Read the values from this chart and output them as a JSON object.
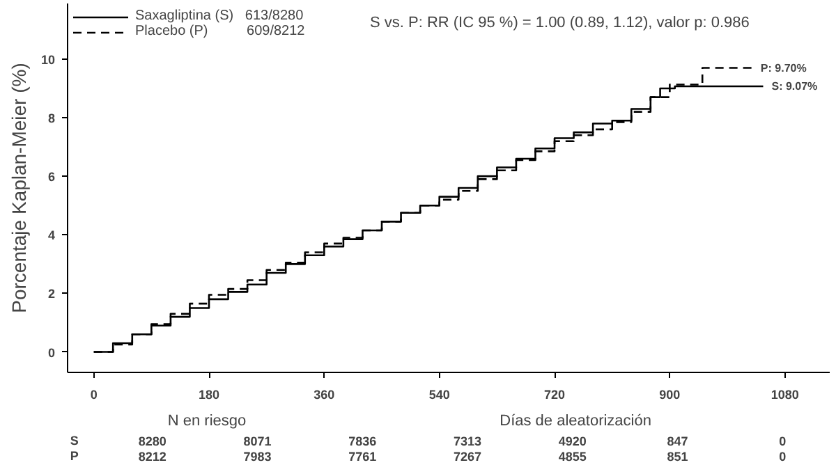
{
  "chart_data": {
    "type": "step",
    "ylabel": "Porcentaje Kaplan-Meier (%)",
    "xlabel": "Días de aleatorización",
    "xlim": [
      -41,
      1150
    ],
    "ylim": [
      -0.7,
      11.9
    ],
    "xticks": [
      0,
      180,
      360,
      540,
      720,
      900,
      1080
    ],
    "yticks": [
      0,
      2,
      4,
      6,
      8,
      10
    ],
    "grid": false,
    "legend": "top left",
    "marker": "none",
    "series": [
      {
        "name": "Saxagliptina (S)   613/8280",
        "color": "#000000",
        "line_style": "solid",
        "x": [
          0,
          30,
          60,
          90,
          120,
          150,
          180,
          210,
          240,
          270,
          300,
          330,
          360,
          390,
          420,
          450,
          480,
          510,
          540,
          570,
          600,
          630,
          660,
          690,
          720,
          750,
          780,
          810,
          840,
          870,
          885,
          908,
          1046
        ],
        "values": [
          0,
          0.3,
          0.6,
          0.9,
          1.2,
          1.5,
          1.8,
          2.05,
          2.3,
          2.7,
          3.0,
          3.3,
          3.6,
          3.85,
          4.15,
          4.45,
          4.75,
          5.0,
          5.3,
          5.6,
          6.0,
          6.3,
          6.6,
          6.95,
          7.3,
          7.5,
          7.8,
          7.9,
          8.3,
          8.7,
          9.0,
          9.07,
          9.07
        ]
      },
      {
        "name": "Placebo (P)          609/8212",
        "color": "#000000",
        "line_style": "dashed",
        "x": [
          0,
          30,
          60,
          90,
          120,
          150,
          180,
          210,
          240,
          270,
          300,
          330,
          360,
          390,
          420,
          450,
          480,
          510,
          540,
          570,
          600,
          630,
          660,
          690,
          720,
          750,
          780,
          810,
          840,
          870,
          900,
          951,
          1029
        ],
        "values": [
          0,
          0.25,
          0.6,
          0.95,
          1.3,
          1.65,
          1.95,
          2.15,
          2.45,
          2.8,
          3.05,
          3.4,
          3.7,
          3.9,
          4.15,
          4.45,
          4.75,
          5.0,
          5.2,
          5.5,
          5.9,
          6.2,
          6.55,
          6.85,
          7.2,
          7.4,
          7.6,
          7.85,
          8.2,
          8.7,
          9.13,
          9.7,
          9.7
        ]
      }
    ],
    "annotations": [
      "S vs. P: RR (IC 95 %) = 1.00 (0.89, 1.12), valor p: 0.986",
      {
        "text": "P:  9.70%",
        "x": 1029,
        "y": 9.7
      },
      {
        "text": "S:  9.07%",
        "x": 1046,
        "y": 9.07
      },
      "N en riesgo",
      "S",
      "8280",
      "8071",
      "7836",
      "7313",
      "4920",
      "847",
      "0",
      "P",
      "8212",
      "7983",
      "7761",
      "7267",
      "4855",
      "851",
      "0"
    ]
  }
}
